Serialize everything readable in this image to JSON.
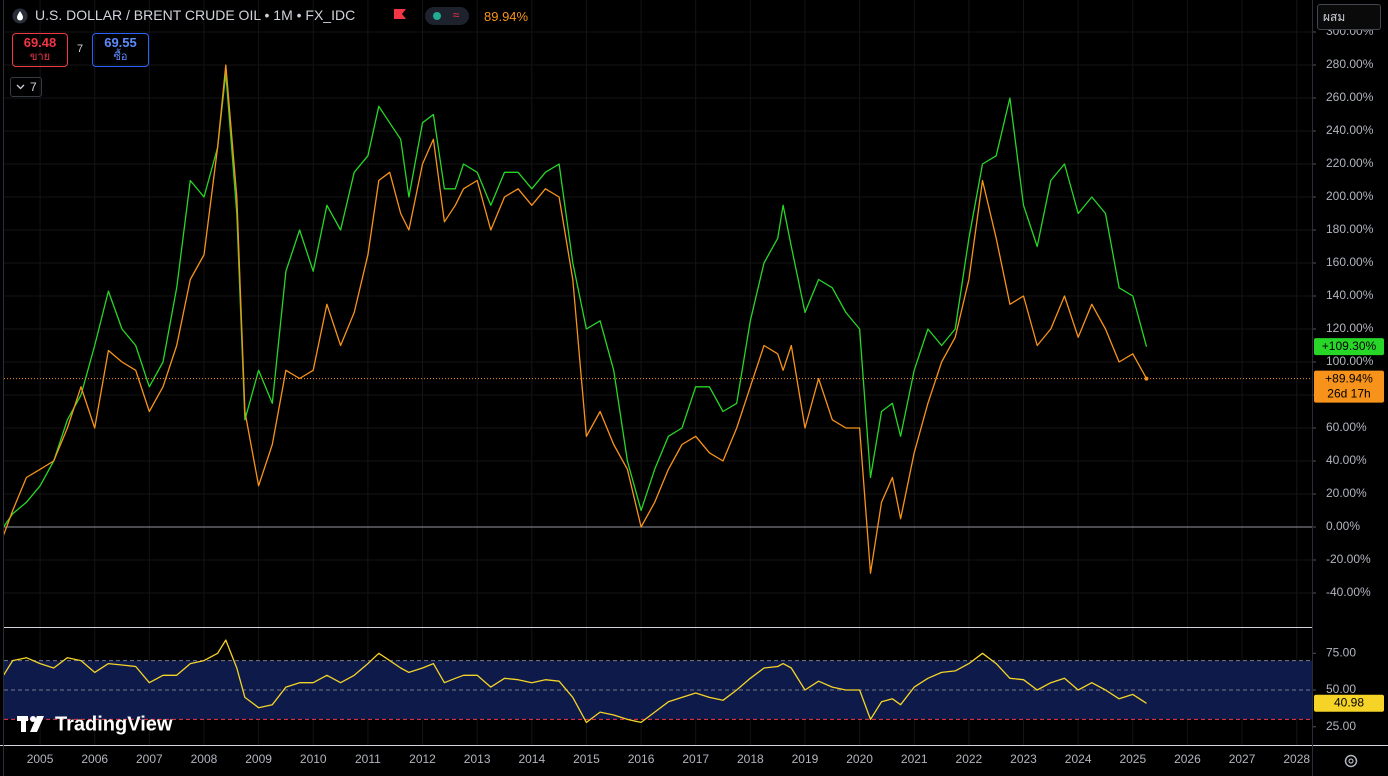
{
  "header": {
    "symbol": "U.S. DOLLAR / BRENT CRUDE OIL • 1M • FX_IDC",
    "change": "89.94%",
    "sell_price": "69.48",
    "sell_label": "ขาย",
    "spread": "7",
    "buy_price": "69.55",
    "buy_label": "ซื้อ",
    "collapse": "7",
    "scale_mode": "ผสม",
    "logo": "TradingView"
  },
  "chart_data": [
    {
      "type": "line",
      "x": [
        2004.33,
        2004.5,
        2004.75,
        2005,
        2005.25,
        2005.5,
        2005.75,
        2006,
        2006.25,
        2006.5,
        2006.75,
        2007,
        2007.25,
        2007.5,
        2007.75,
        2008,
        2008.25,
        2008.4,
        2008.6,
        2008.75,
        2009,
        2009.25,
        2009.5,
        2009.75,
        2010,
        2010.25,
        2010.5,
        2010.75,
        2011,
        2011.2,
        2011.4,
        2011.6,
        2011.75,
        2012,
        2012.2,
        2012.4,
        2012.6,
        2012.75,
        2013,
        2013.25,
        2013.5,
        2013.75,
        2014,
        2014.25,
        2014.5,
        2014.75,
        2015,
        2015.25,
        2015.5,
        2015.75,
        2016,
        2016.25,
        2016.5,
        2016.75,
        2017,
        2017.25,
        2017.5,
        2017.75,
        2018,
        2018.25,
        2018.5,
        2018.6,
        2018.75,
        2019,
        2019.25,
        2019.5,
        2019.75,
        2020,
        2020.2,
        2020.4,
        2020.6,
        2020.75,
        2021,
        2021.25,
        2021.5,
        2021.75,
        2022,
        2022.25,
        2022.5,
        2022.75,
        2023,
        2023.25,
        2023.5,
        2023.75,
        2024,
        2024.25,
        2024.5,
        2024.75,
        2025,
        2025.25
      ],
      "series": [
        {
          "color": "#27d627",
          "last_label": "+109.30%",
          "values": [
            0,
            8,
            15,
            25,
            40,
            65,
            80,
            110,
            143,
            120,
            110,
            85,
            100,
            145,
            210,
            200,
            230,
            275,
            190,
            65,
            95,
            75,
            155,
            180,
            155,
            195,
            180,
            215,
            225,
            255,
            245,
            235,
            200,
            245,
            250,
            205,
            205,
            220,
            215,
            195,
            215,
            215,
            205,
            215,
            220,
            160,
            120,
            125,
            95,
            40,
            10,
            35,
            55,
            60,
            85,
            85,
            70,
            75,
            125,
            160,
            175,
            195,
            170,
            130,
            150,
            145,
            130,
            120,
            30,
            70,
            75,
            55,
            95,
            120,
            110,
            120,
            175,
            220,
            225,
            260,
            195,
            170,
            210,
            220,
            190,
            200,
            190,
            145,
            140,
            109.3
          ]
        },
        {
          "color": "#f7931a",
          "last_label": "+89.94%",
          "countdown": "26d 17h",
          "values": [
            -5,
            10,
            30,
            35,
            40,
            60,
            85,
            60,
            107,
            100,
            95,
            70,
            85,
            110,
            150,
            165,
            230,
            280,
            200,
            70,
            25,
            50,
            95,
            90,
            95,
            135,
            110,
            130,
            165,
            210,
            215,
            190,
            180,
            220,
            235,
            185,
            195,
            205,
            210,
            180,
            200,
            205,
            195,
            205,
            200,
            150,
            55,
            70,
            50,
            35,
            0,
            15,
            35,
            50,
            55,
            45,
            40,
            60,
            85,
            110,
            105,
            95,
            110,
            60,
            90,
            65,
            60,
            60,
            -28,
            15,
            30,
            5,
            45,
            75,
            100,
            115,
            150,
            210,
            175,
            135,
            140,
            110,
            120,
            140,
            115,
            135,
            120,
            100,
            105,
            89.94
          ]
        }
      ],
      "xlim": [
        2004.34,
        2028.28
      ],
      "xticks": [
        2005,
        2006,
        2007,
        2008,
        2009,
        2010,
        2011,
        2012,
        2013,
        2014,
        2015,
        2016,
        2017,
        2018,
        2019,
        2020,
        2021,
        2022,
        2023,
        2024,
        2025,
        2026,
        2027,
        2028
      ],
      "ylim": [
        -60.6,
        319.4
      ],
      "yticks": [
        {
          "value": -40,
          "label": "-40.00%"
        },
        {
          "value": -20,
          "label": "-20.00%"
        },
        {
          "value": 0,
          "label": "0.00%"
        },
        {
          "value": 20,
          "label": "20.00%"
        },
        {
          "value": 40,
          "label": "40.00%"
        },
        {
          "value": 60,
          "label": "60.00%"
        },
        {
          "value": 80,
          "label": "80.00%"
        },
        {
          "value": 100,
          "label": "100.00%"
        },
        {
          "value": 120,
          "label": "120.00%"
        },
        {
          "value": 140,
          "label": "140.00%"
        },
        {
          "value": 160,
          "label": "160.00%"
        },
        {
          "value": 180,
          "label": "180.00%"
        },
        {
          "value": 200,
          "label": "200.00%"
        },
        {
          "value": 220,
          "label": "220.00%"
        },
        {
          "value": 240,
          "label": "240.00%"
        },
        {
          "value": 260,
          "label": "260.00%"
        },
        {
          "value": 280,
          "label": "280.00%"
        },
        {
          "value": 300,
          "label": "300.00%"
        }
      ],
      "grid": true,
      "baseline": 0
    },
    {
      "type": "line",
      "x": [
        2004.33,
        2004.5,
        2004.75,
        2005,
        2005.25,
        2005.5,
        2005.75,
        2006,
        2006.25,
        2006.5,
        2006.75,
        2007,
        2007.25,
        2007.5,
        2007.75,
        2008,
        2008.25,
        2008.4,
        2008.6,
        2008.75,
        2009,
        2009.25,
        2009.5,
        2009.75,
        2010,
        2010.25,
        2010.5,
        2010.75,
        2011,
        2011.2,
        2011.4,
        2011.6,
        2011.75,
        2012,
        2012.2,
        2012.4,
        2012.6,
        2012.75,
        2013,
        2013.25,
        2013.5,
        2013.75,
        2014,
        2014.25,
        2014.5,
        2014.75,
        2015,
        2015.25,
        2015.5,
        2015.75,
        2016,
        2016.25,
        2016.5,
        2016.75,
        2017,
        2017.25,
        2017.5,
        2017.75,
        2018,
        2018.25,
        2018.5,
        2018.6,
        2018.75,
        2019,
        2019.25,
        2019.5,
        2019.75,
        2020,
        2020.2,
        2020.4,
        2020.6,
        2020.75,
        2021,
        2021.25,
        2021.5,
        2021.75,
        2022,
        2022.25,
        2022.5,
        2022.75,
        2023,
        2023.25,
        2023.5,
        2023.75,
        2024,
        2024.25,
        2024.5,
        2024.75,
        2025,
        2025.25
      ],
      "series": [
        {
          "color": "#f5d327",
          "last_label": "40.98",
          "values": [
            60,
            70,
            72,
            68,
            65,
            72,
            70,
            62,
            68,
            67,
            66,
            55,
            60,
            60,
            68,
            70,
            75,
            84,
            65,
            45,
            38,
            40,
            52,
            55,
            55,
            60,
            55,
            60,
            68,
            75,
            70,
            65,
            62,
            65,
            68,
            55,
            58,
            60,
            60,
            52,
            58,
            57,
            55,
            57,
            56,
            45,
            28,
            35,
            33,
            30,
            28,
            35,
            42,
            45,
            48,
            45,
            43,
            50,
            58,
            65,
            66,
            68,
            65,
            50,
            56,
            52,
            50,
            50,
            30,
            42,
            44,
            40,
            52,
            58,
            62,
            63,
            68,
            75,
            68,
            58,
            57,
            50,
            55,
            58,
            50,
            55,
            50,
            44,
            47,
            40.98
          ]
        }
      ],
      "xlim": [
        2004.34,
        2028.28
      ],
      "ylim": [
        12.6,
        92.2
      ],
      "yticks": [
        {
          "value": 25,
          "label": "25.00"
        },
        {
          "value": 50,
          "label": "50.00"
        },
        {
          "value": 75,
          "label": "75.00"
        }
      ],
      "band": [
        30,
        70
      ],
      "band_color": "#0d1a4a",
      "levels": [
        {
          "value": 70,
          "color": "#787b86"
        },
        {
          "value": 50,
          "color": "#787b86"
        },
        {
          "value": 30,
          "color": "#f23645"
        }
      ]
    }
  ]
}
